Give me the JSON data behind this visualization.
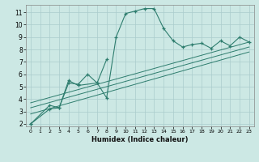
{
  "xlabel": "Humidex (Indice chaleur)",
  "bg_color": "#cce8e4",
  "grid_color": "#aacccc",
  "line_color": "#2e7d6e",
  "xlim": [
    -0.5,
    23.5
  ],
  "ylim": [
    1.8,
    11.6
  ],
  "yticks": [
    2,
    3,
    4,
    5,
    6,
    7,
    8,
    9,
    10,
    11
  ],
  "xticks": [
    0,
    1,
    2,
    3,
    4,
    5,
    6,
    7,
    8,
    9,
    10,
    11,
    12,
    13,
    14,
    15,
    16,
    17,
    18,
    19,
    20,
    21,
    22,
    23
  ],
  "curve1_x": [
    0,
    2,
    3,
    4,
    5,
    6,
    7,
    8,
    9,
    10,
    11,
    12,
    13,
    14,
    15,
    16,
    17,
    18,
    19,
    20,
    21,
    22,
    23
  ],
  "curve1_y": [
    2.0,
    3.2,
    3.3,
    5.3,
    5.2,
    6.0,
    5.3,
    4.1,
    9.0,
    10.9,
    11.1,
    11.3,
    11.3,
    9.7,
    8.7,
    8.2,
    8.4,
    8.5,
    8.1,
    8.7,
    8.3,
    9.0,
    8.6
  ],
  "curve2_x": [
    0,
    2,
    3,
    4,
    5,
    7,
    8
  ],
  "curve2_y": [
    2.0,
    3.5,
    3.3,
    5.5,
    5.1,
    5.3,
    7.2
  ],
  "line1_x": [
    0,
    23
  ],
  "line1_y": [
    2.8,
    7.8
  ],
  "line2_x": [
    0,
    23
  ],
  "line2_y": [
    3.3,
    8.2
  ],
  "line3_x": [
    0,
    23
  ],
  "line3_y": [
    3.7,
    8.6
  ]
}
